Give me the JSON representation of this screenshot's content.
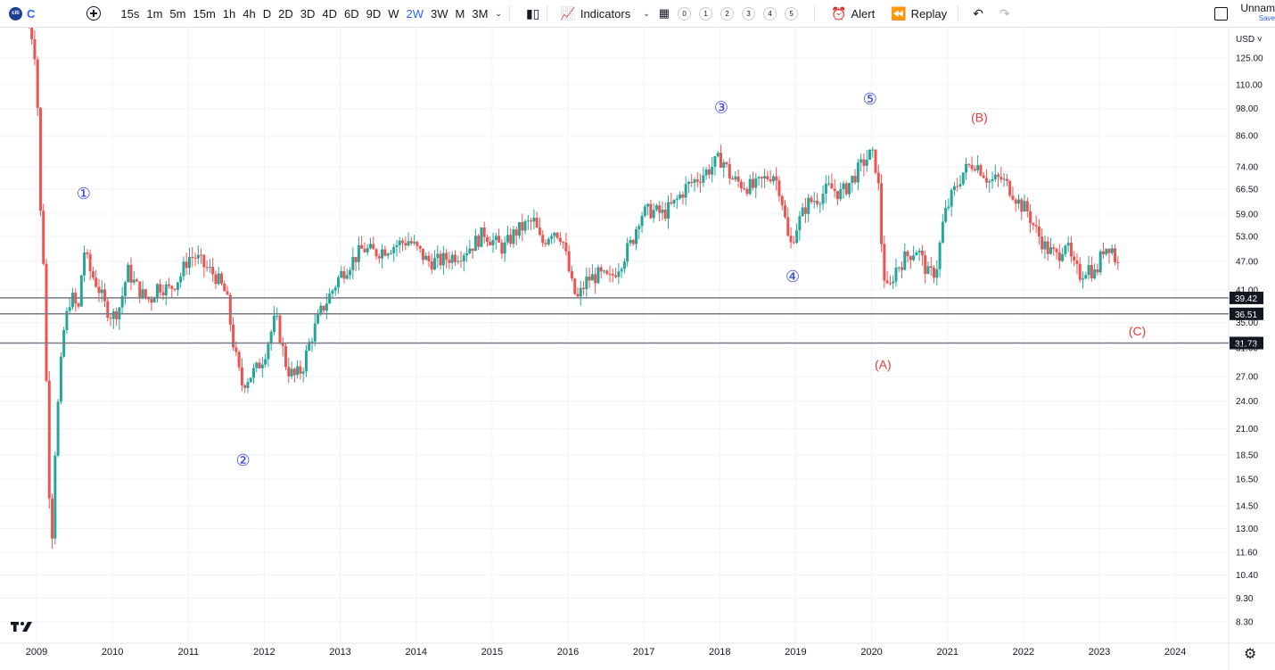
{
  "toolbar": {
    "symbol_logo": "citi",
    "symbol": "C",
    "intervals": [
      "15s",
      "1m",
      "5m",
      "15m",
      "1h",
      "4h",
      "D",
      "2D",
      "3D",
      "4D",
      "6D",
      "9D",
      "W",
      "2W",
      "3W",
      "M",
      "3M"
    ],
    "active_interval": "2W",
    "indicators_label": "Indicators",
    "templates": [
      "0",
      "1",
      "2",
      "3",
      "4",
      "5"
    ],
    "alert_label": "Alert",
    "replay_label": "Replay",
    "layout_name": "Unnam",
    "layout_status": "Save"
  },
  "colors": {
    "up": "#26a69a",
    "down": "#ef5350",
    "wave_impulse": "#3344dd",
    "wave_corrective": "#e53935",
    "level_line": "#787b86",
    "active_interval": "#2962ff"
  },
  "icons": [
    "add-symbol-icon",
    "candles-icon",
    "indicators-icon",
    "layout-grid-icon",
    "alert-icon",
    "replay-icon",
    "undo-icon",
    "redo-icon",
    "layout-box-icon",
    "settings-icon",
    "tradingview-logo-icon"
  ],
  "chart_data": {
    "type": "candlestick",
    "symbol": "C",
    "currency": "USD",
    "price_scale": "log",
    "y_ticks": [
      125.0,
      110.0,
      98.0,
      86.0,
      74.0,
      66.5,
      59.0,
      53.0,
      47.0,
      41.0,
      35.0,
      31.0,
      27.0,
      24.0,
      21.0,
      18.5,
      16.5,
      14.5,
      13.0,
      11.6,
      10.4,
      9.3,
      8.3
    ],
    "x_ticks": [
      "2009",
      "2010",
      "2011",
      "2012",
      "2013",
      "2014",
      "2015",
      "2016",
      "2017",
      "2018",
      "2019",
      "2020",
      "2021",
      "2022",
      "2023",
      "2024"
    ],
    "horizontal_levels": [
      39.42,
      36.51,
      31.73
    ],
    "wave_labels": [
      {
        "label": "①",
        "t": 2009.62,
        "price": 63.5,
        "kind": "impulse"
      },
      {
        "label": "②",
        "t": 2011.72,
        "price": 17.6,
        "kind": "impulse"
      },
      {
        "label": "③",
        "t": 2018.02,
        "price": 96.0,
        "kind": "impulse"
      },
      {
        "label": "④",
        "t": 2018.96,
        "price": 42.6,
        "kind": "impulse"
      },
      {
        "label": "⑤",
        "t": 2019.98,
        "price": 100.0,
        "kind": "impulse"
      },
      {
        "label": "(A)",
        "t": 2020.15,
        "price": 28.0,
        "kind": "corrective"
      },
      {
        "label": "(B)",
        "t": 2021.42,
        "price": 92.0,
        "kind": "corrective"
      },
      {
        "label": "(C)",
        "t": 2023.5,
        "price": 32.9,
        "kind": "corrective"
      }
    ],
    "price_path": [
      [
        2008.86,
        150
      ],
      [
        2008.95,
        138
      ],
      [
        2009.0,
        120
      ],
      [
        2009.05,
        60
      ],
      [
        2009.1,
        45
      ],
      [
        2009.15,
        18
      ],
      [
        2009.2,
        12
      ],
      [
        2009.25,
        20
      ],
      [
        2009.35,
        33
      ],
      [
        2009.45,
        40
      ],
      [
        2009.55,
        37
      ],
      [
        2009.62,
        50
      ],
      [
        2009.7,
        45
      ],
      [
        2009.8,
        42
      ],
      [
        2009.9,
        38
      ],
      [
        2010.0,
        36
      ],
      [
        2010.1,
        38
      ],
      [
        2010.2,
        45
      ],
      [
        2010.3,
        42
      ],
      [
        2010.4,
        40
      ],
      [
        2010.5,
        39
      ],
      [
        2010.6,
        42
      ],
      [
        2010.75,
        41
      ],
      [
        2010.9,
        44
      ],
      [
        2011.0,
        48
      ],
      [
        2011.1,
        48
      ],
      [
        2011.2,
        46
      ],
      [
        2011.35,
        44
      ],
      [
        2011.5,
        40
      ],
      [
        2011.6,
        31
      ],
      [
        2011.7,
        26
      ],
      [
        2011.8,
        27
      ],
      [
        2011.9,
        28
      ],
      [
        2012.0,
        30
      ],
      [
        2012.15,
        36
      ],
      [
        2012.3,
        28
      ],
      [
        2012.4,
        27
      ],
      [
        2012.5,
        28
      ],
      [
        2012.6,
        32
      ],
      [
        2012.75,
        37
      ],
      [
        2012.9,
        41
      ],
      [
        2013.0,
        44
      ],
      [
        2013.15,
        47
      ],
      [
        2013.3,
        50
      ],
      [
        2013.45,
        49
      ],
      [
        2013.6,
        50
      ],
      [
        2013.75,
        51
      ],
      [
        2013.9,
        52
      ],
      [
        2014.0,
        50
      ],
      [
        2014.15,
        47
      ],
      [
        2014.3,
        47
      ],
      [
        2014.45,
        48
      ],
      [
        2014.6,
        49
      ],
      [
        2014.75,
        51
      ],
      [
        2014.9,
        54
      ],
      [
        2015.0,
        52
      ],
      [
        2015.15,
        50
      ],
      [
        2015.3,
        54
      ],
      [
        2015.45,
        56
      ],
      [
        2015.55,
        57
      ],
      [
        2015.65,
        51
      ],
      [
        2015.8,
        55
      ],
      [
        2015.92,
        53
      ],
      [
        2016.05,
        42
      ],
      [
        2016.12,
        39
      ],
      [
        2016.25,
        43
      ],
      [
        2016.4,
        44
      ],
      [
        2016.55,
        43
      ],
      [
        2016.7,
        47
      ],
      [
        2016.85,
        52
      ],
      [
        2016.95,
        59
      ],
      [
        2017.1,
        60
      ],
      [
        2017.25,
        59
      ],
      [
        2017.4,
        62
      ],
      [
        2017.55,
        67
      ],
      [
        2017.7,
        70
      ],
      [
        2017.85,
        73
      ],
      [
        2018.0,
        77
      ],
      [
        2018.05,
        76
      ],
      [
        2018.15,
        70
      ],
      [
        2018.3,
        68
      ],
      [
        2018.45,
        67
      ],
      [
        2018.6,
        70
      ],
      [
        2018.7,
        72
      ],
      [
        2018.8,
        66
      ],
      [
        2018.92,
        50
      ],
      [
        2019.0,
        55
      ],
      [
        2019.15,
        62
      ],
      [
        2019.3,
        64
      ],
      [
        2019.45,
        67
      ],
      [
        2019.6,
        65
      ],
      [
        2019.75,
        70
      ],
      [
        2019.9,
        76
      ],
      [
        2020.0,
        79
      ],
      [
        2020.08,
        72
      ],
      [
        2020.15,
        45
      ],
      [
        2020.22,
        40
      ],
      [
        2020.3,
        45
      ],
      [
        2020.45,
        48
      ],
      [
        2020.6,
        50
      ],
      [
        2020.75,
        44
      ],
      [
        2020.85,
        45
      ],
      [
        2020.95,
        58
      ],
      [
        2021.05,
        64
      ],
      [
        2021.2,
        72
      ],
      [
        2021.35,
        76
      ],
      [
        2021.45,
        73
      ],
      [
        2021.55,
        69
      ],
      [
        2021.7,
        70
      ],
      [
        2021.85,
        66
      ],
      [
        2021.95,
        62
      ],
      [
        2022.05,
        60
      ],
      [
        2022.15,
        55
      ],
      [
        2022.3,
        50
      ],
      [
        2022.45,
        48
      ],
      [
        2022.55,
        52
      ],
      [
        2022.65,
        46
      ],
      [
        2022.75,
        44
      ],
      [
        2022.85,
        46
      ],
      [
        2022.95,
        44
      ],
      [
        2023.05,
        50
      ],
      [
        2023.15,
        51
      ],
      [
        2023.22,
        47
      ],
      [
        2023.28,
        45
      ]
    ]
  }
}
